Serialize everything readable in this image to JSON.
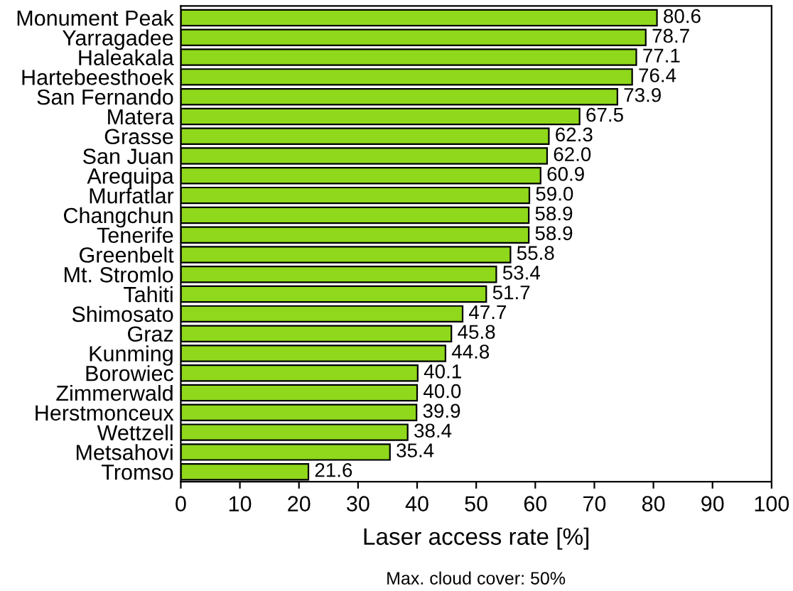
{
  "chart_data": {
    "type": "bar",
    "orientation": "horizontal",
    "categories": [
      "Monument Peak",
      "Yarragadee",
      "Haleakala",
      "Hartebeesthoek",
      "San Fernando",
      "Matera",
      "Grasse",
      "San Juan",
      "Arequipa",
      "Murfatlar",
      "Changchun",
      "Tenerife",
      "Greenbelt",
      "Mt. Stromlo",
      "Tahiti",
      "Shimosato",
      "Graz",
      "Kunming",
      "Borowiec",
      "Zimmerwald",
      "Herstmonceux",
      "Wettzell",
      "Metsahovi",
      "Tromso"
    ],
    "values": [
      80.6,
      78.7,
      77.1,
      76.4,
      73.9,
      67.5,
      62.3,
      62.0,
      60.9,
      59.0,
      58.9,
      58.9,
      55.8,
      53.4,
      51.7,
      47.7,
      45.8,
      44.8,
      40.1,
      40.0,
      39.9,
      38.4,
      35.4,
      21.6
    ],
    "color": "#8fd81c",
    "xlabel": "Laser access rate [%]",
    "annotations": [
      "Max. cloud cover: 50%"
    ],
    "xlim": [
      0,
      100
    ],
    "xticks": [
      0,
      10,
      20,
      30,
      40,
      50,
      60,
      70,
      80,
      90,
      100
    ],
    "value_labels": [
      "80.6",
      "78.7",
      "77.1",
      "76.4",
      "73.9",
      "67.5",
      "62.3",
      "62.0",
      "60.9",
      "59.0",
      "58.9",
      "58.9",
      "55.8",
      "53.4",
      "51.7",
      "47.7",
      "45.8",
      "44.8",
      "40.1",
      "40.0",
      "39.9",
      "38.4",
      "35.4",
      "21.6"
    ],
    "grid": false,
    "legend": false
  }
}
